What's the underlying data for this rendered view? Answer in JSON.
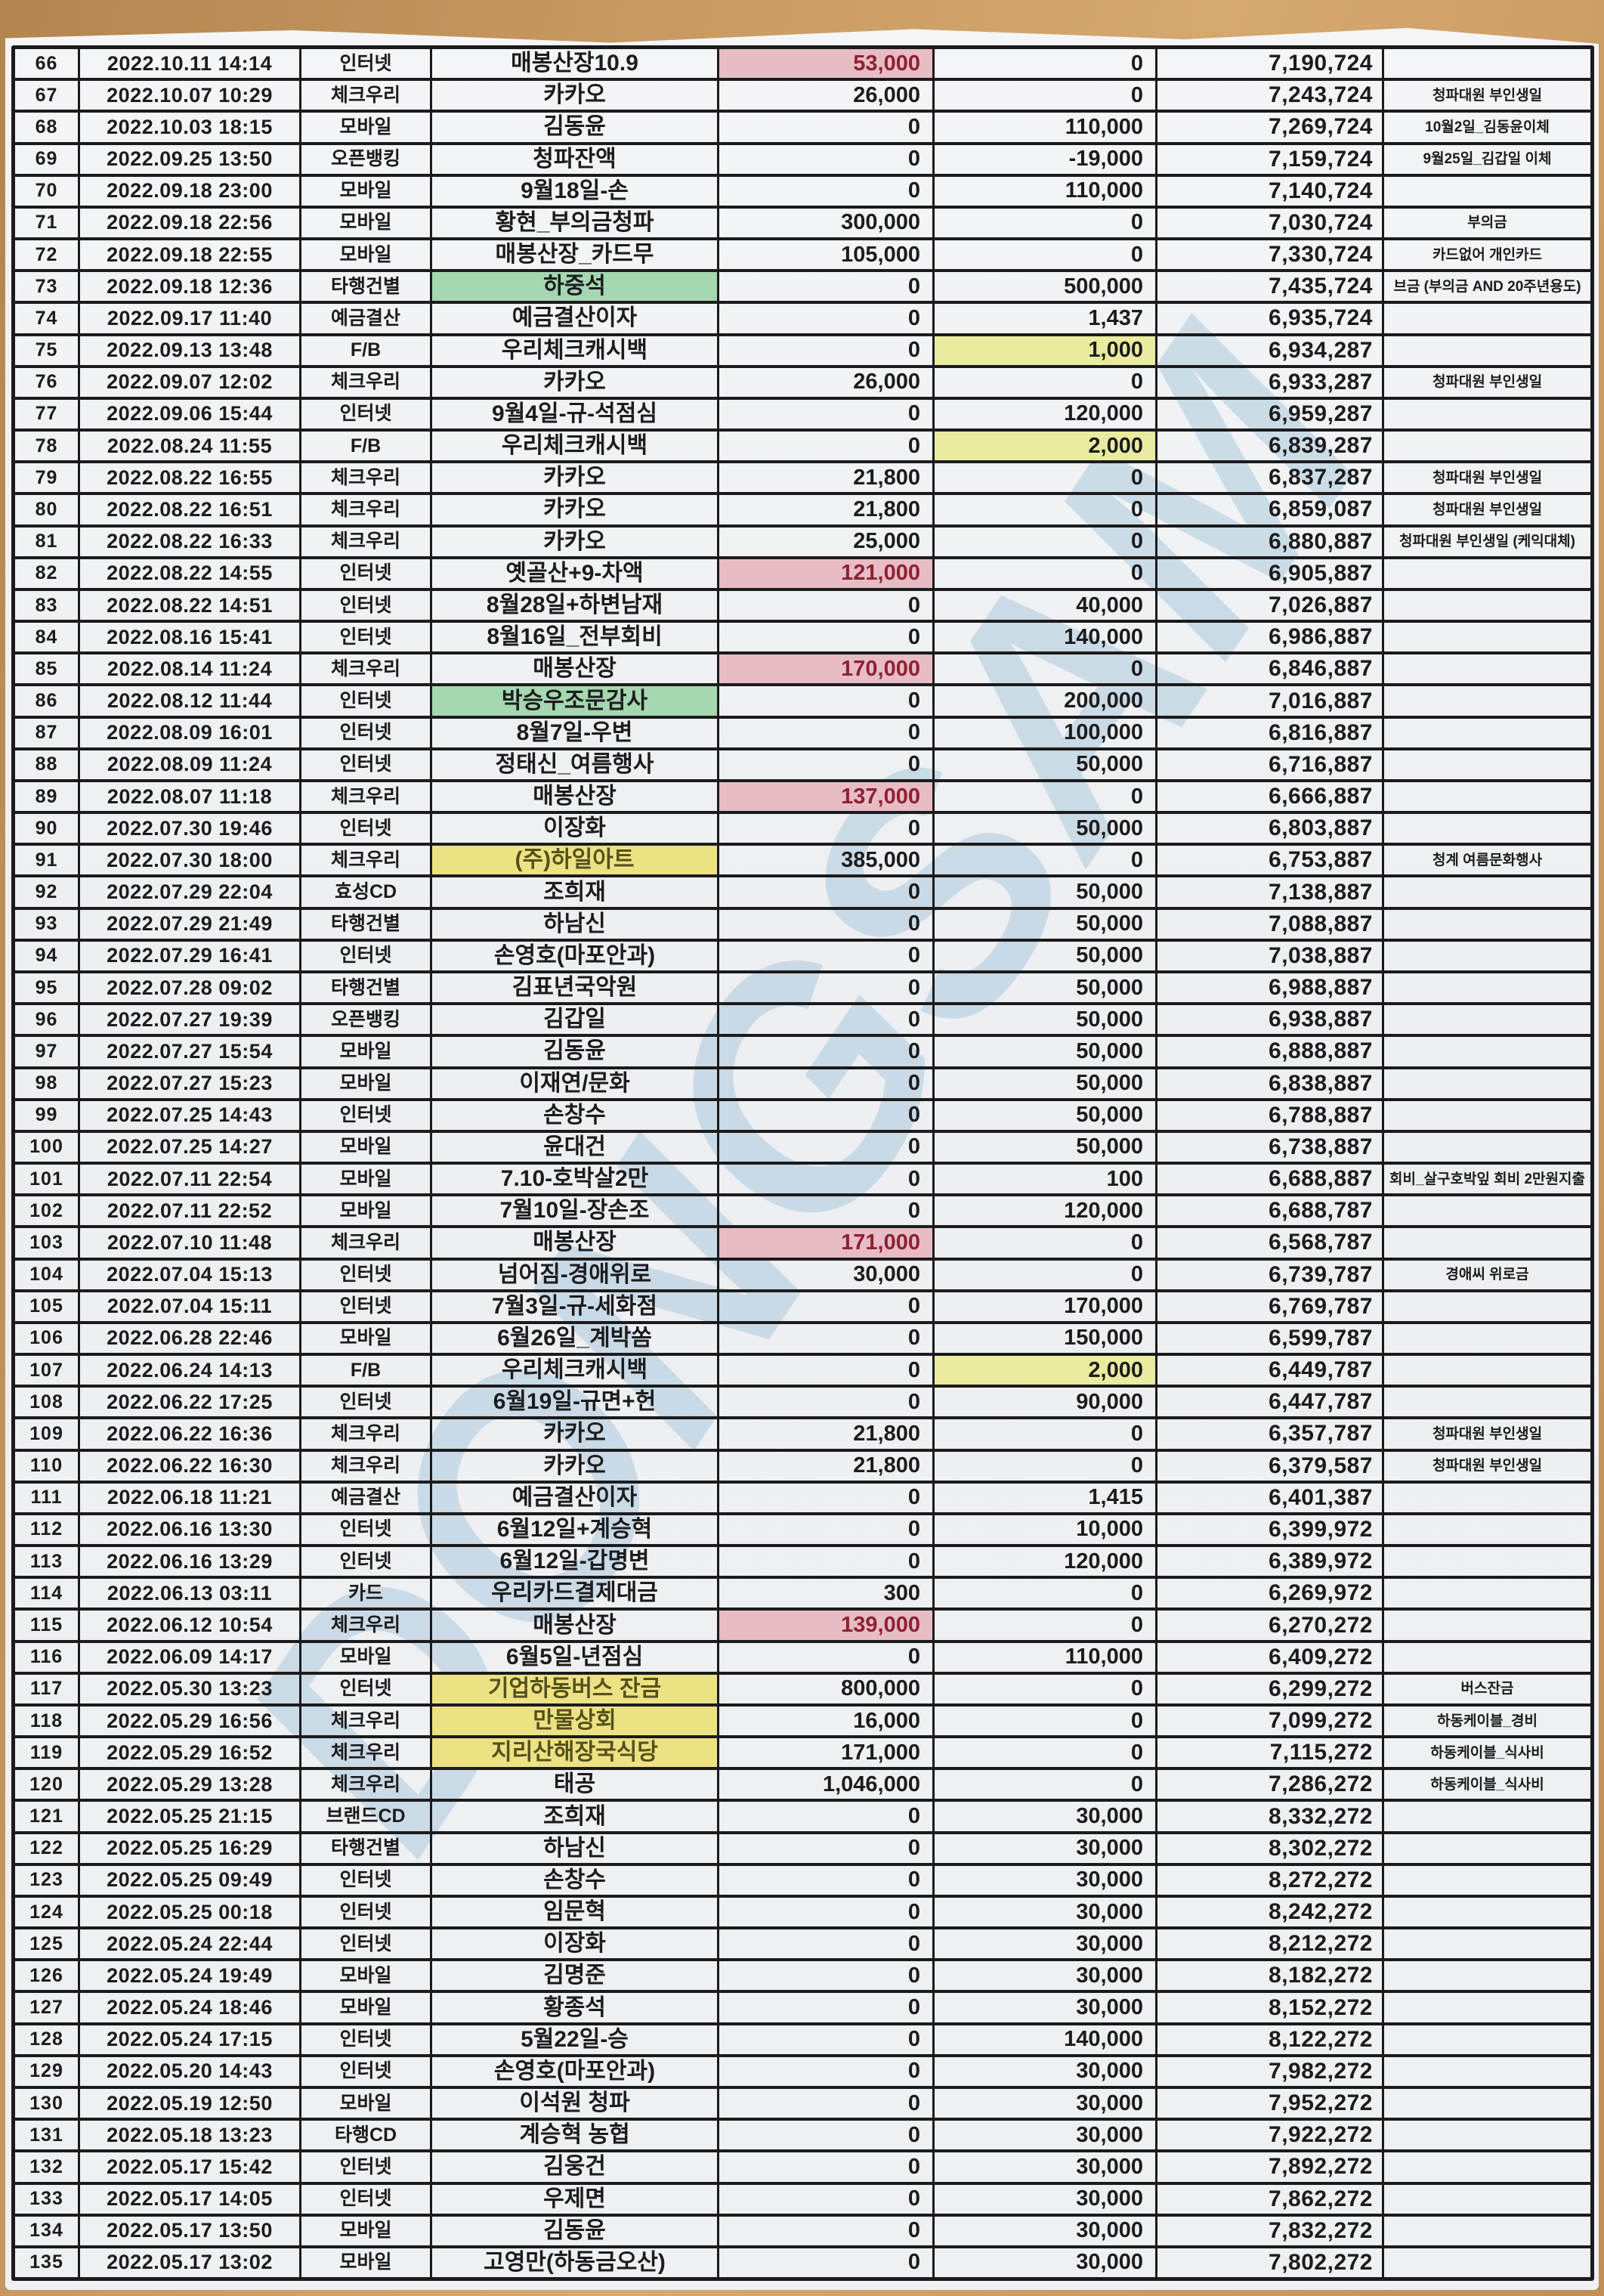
{
  "document": {
    "watermark": "DONGSAM"
  },
  "colors": {
    "paper": "#eef0f3",
    "wood_background": "#c2955f",
    "grid_line": "#1b1b1d",
    "highlight_pink": "#e8bcc5",
    "highlight_pink_text": "#8d2133",
    "highlight_green": "#a5d7b0",
    "highlight_yellow_description": "#ece284",
    "highlight_yellow_deposit": "#e9ec9f",
    "watermark_blue": "rgba(158,193,214,0.45)"
  },
  "table": {
    "fields": [
      "row_no",
      "datetime",
      "channel",
      "description",
      "withdrawal",
      "deposit",
      "balance",
      "note",
      "description_highlight",
      "withdrawal_highlight",
      "deposit_highlight"
    ],
    "rows": [
      [
        "66",
        "2022.10.11 14:14",
        "인터넷",
        "매봉산장10.9",
        "53,000",
        "0",
        "7,190,724",
        "",
        "",
        "pink",
        ""
      ],
      [
        "67",
        "2022.10.07 10:29",
        "체크우리",
        "카카오",
        "26,000",
        "0",
        "7,243,724",
        "청파대원  부인생일",
        "",
        "",
        ""
      ],
      [
        "68",
        "2022.10.03 18:15",
        "모바일",
        "김동윤",
        "0",
        "110,000",
        "7,269,724",
        "10월2일_김동윤이체",
        "",
        "",
        ""
      ],
      [
        "69",
        "2022.09.25 13:50",
        "오픈뱅킹",
        "청파잔액",
        "0",
        "-19,000",
        "7,159,724",
        "9월25일_김갑일  이체",
        "",
        "",
        ""
      ],
      [
        "70",
        "2022.09.18 23:00",
        "모바일",
        "9월18일-손",
        "0",
        "110,000",
        "7,140,724",
        "",
        "",
        "",
        ""
      ],
      [
        "71",
        "2022.09.18 22:56",
        "모바일",
        "황현_부의금청파",
        "300,000",
        "0",
        "7,030,724",
        "부의금",
        "",
        "",
        ""
      ],
      [
        "72",
        "2022.09.18 22:55",
        "모바일",
        "매봉산장_카드무",
        "105,000",
        "0",
        "7,330,724",
        "카드없어  개인카드",
        "",
        "",
        ""
      ],
      [
        "73",
        "2022.09.18 12:36",
        "타행건별",
        "하중석",
        "0",
        "500,000",
        "7,435,724",
        "브금 (부의금  AND  20주년용도)",
        "green",
        "",
        ""
      ],
      [
        "74",
        "2022.09.17 11:40",
        "예금결산",
        "예금결산이자",
        "0",
        "1,437",
        "6,935,724",
        "",
        "",
        "",
        ""
      ],
      [
        "75",
        "2022.09.13 13:48",
        "F/B",
        "우리체크캐시백",
        "0",
        "1,000",
        "6,934,287",
        "",
        "",
        "",
        "ydep"
      ],
      [
        "76",
        "2022.09.07 12:02",
        "체크우리",
        "카카오",
        "26,000",
        "0",
        "6,933,287",
        "청파대원  부인생일",
        "",
        "",
        ""
      ],
      [
        "77",
        "2022.09.06 15:44",
        "인터넷",
        "9월4일-규-석점심",
        "0",
        "120,000",
        "6,959,287",
        "",
        "",
        "",
        ""
      ],
      [
        "78",
        "2022.08.24 11:55",
        "F/B",
        "우리체크캐시백",
        "0",
        "2,000",
        "6,839,287",
        "",
        "",
        "",
        "ydep"
      ],
      [
        "79",
        "2022.08.22 16:55",
        "체크우리",
        "카카오",
        "21,800",
        "0",
        "6,837,287",
        "청파대원  부인생일",
        "",
        "",
        ""
      ],
      [
        "80",
        "2022.08.22 16:51",
        "체크우리",
        "카카오",
        "21,800",
        "0",
        "6,859,087",
        "청파대원  부인생일",
        "",
        "",
        ""
      ],
      [
        "81",
        "2022.08.22 16:33",
        "체크우리",
        "카카오",
        "25,000",
        "0",
        "6,880,887",
        "청파대원  부인생일 (케익대체)",
        "",
        "",
        ""
      ],
      [
        "82",
        "2022.08.22 14:55",
        "인터넷",
        "옛골산+9-차액",
        "121,000",
        "0",
        "6,905,887",
        "",
        "",
        "pink",
        ""
      ],
      [
        "83",
        "2022.08.22 14:51",
        "인터넷",
        "8월28일+하변남재",
        "0",
        "40,000",
        "7,026,887",
        "",
        "",
        "",
        ""
      ],
      [
        "84",
        "2022.08.16 15:41",
        "인터넷",
        "8월16일_전부회비",
        "0",
        "140,000",
        "6,986,887",
        "",
        "",
        "",
        ""
      ],
      [
        "85",
        "2022.08.14 11:24",
        "체크우리",
        "매봉산장",
        "170,000",
        "0",
        "6,846,887",
        "",
        "",
        "pink",
        ""
      ],
      [
        "86",
        "2022.08.12 11:44",
        "인터넷",
        "박승우조문감사",
        "0",
        "200,000",
        "7,016,887",
        "",
        "green",
        "",
        ""
      ],
      [
        "87",
        "2022.08.09 16:01",
        "인터넷",
        "8월7일-우변",
        "0",
        "100,000",
        "6,816,887",
        "",
        "",
        "",
        ""
      ],
      [
        "88",
        "2022.08.09 11:24",
        "인터넷",
        "정태신_여름행사",
        "0",
        "50,000",
        "6,716,887",
        "",
        "",
        "",
        ""
      ],
      [
        "89",
        "2022.08.07 11:18",
        "체크우리",
        "매봉산장",
        "137,000",
        "0",
        "6,666,887",
        "",
        "",
        "pink",
        ""
      ],
      [
        "90",
        "2022.07.30 19:46",
        "인터넷",
        "이장화",
        "0",
        "50,000",
        "6,803,887",
        "",
        "",
        "",
        ""
      ],
      [
        "91",
        "2022.07.30 18:00",
        "체크우리",
        "(주)하일아트",
        "385,000",
        "0",
        "6,753,887",
        "청계  여름문화행사",
        "yellow",
        "",
        ""
      ],
      [
        "92",
        "2022.07.29 22:04",
        "효성CD",
        "조희재",
        "0",
        "50,000",
        "7,138,887",
        "",
        "",
        "",
        ""
      ],
      [
        "93",
        "2022.07.29 21:49",
        "타행건별",
        "하남신",
        "0",
        "50,000",
        "7,088,887",
        "",
        "",
        "",
        ""
      ],
      [
        "94",
        "2022.07.29 16:41",
        "인터넷",
        "손영호(마포안과)",
        "0",
        "50,000",
        "7,038,887",
        "",
        "",
        "",
        ""
      ],
      [
        "95",
        "2022.07.28 09:02",
        "타행건별",
        "김표년국악원",
        "0",
        "50,000",
        "6,988,887",
        "",
        "",
        "",
        ""
      ],
      [
        "96",
        "2022.07.27 19:39",
        "오픈뱅킹",
        "김갑일",
        "0",
        "50,000",
        "6,938,887",
        "",
        "",
        "",
        ""
      ],
      [
        "97",
        "2022.07.27 15:54",
        "모바일",
        "김동윤",
        "0",
        "50,000",
        "6,888,887",
        "",
        "",
        "",
        ""
      ],
      [
        "98",
        "2022.07.27 15:23",
        "모바일",
        "이재연/문화",
        "0",
        "50,000",
        "6,838,887",
        "",
        "",
        "",
        ""
      ],
      [
        "99",
        "2022.07.25 14:43",
        "인터넷",
        "손창수",
        "0",
        "50,000",
        "6,788,887",
        "",
        "",
        "",
        ""
      ],
      [
        "100",
        "2022.07.25 14:27",
        "모바일",
        "윤대건",
        "0",
        "50,000",
        "6,738,887",
        "",
        "",
        "",
        ""
      ],
      [
        "101",
        "2022.07.11 22:54",
        "모바일",
        "7.10-호박살2만",
        "0",
        "100",
        "6,688,887",
        "회비_살구호박잎  회비  2만원지출",
        "",
        "",
        ""
      ],
      [
        "102",
        "2022.07.11 22:52",
        "모바일",
        "7월10일-장손조",
        "0",
        "120,000",
        "6,688,787",
        "",
        "",
        "",
        ""
      ],
      [
        "103",
        "2022.07.10 11:48",
        "체크우리",
        "매봉산장",
        "171,000",
        "0",
        "6,568,787",
        "",
        "",
        "pink",
        ""
      ],
      [
        "104",
        "2022.07.04 15:13",
        "인터넷",
        "넘어짐-경애위로",
        "30,000",
        "0",
        "6,739,787",
        "경애씨  위로금",
        "",
        "",
        ""
      ],
      [
        "105",
        "2022.07.04 15:11",
        "인터넷",
        "7월3일-규-세화점",
        "0",
        "170,000",
        "6,769,787",
        "",
        "",
        "",
        ""
      ],
      [
        "106",
        "2022.06.28 22:46",
        "모바일",
        "6월26일_계박쏨",
        "0",
        "150,000",
        "6,599,787",
        "",
        "",
        "",
        ""
      ],
      [
        "107",
        "2022.06.24 14:13",
        "F/B",
        "우리체크캐시백",
        "0",
        "2,000",
        "6,449,787",
        "",
        "",
        "",
        "ydep"
      ],
      [
        "108",
        "2022.06.22 17:25",
        "인터넷",
        "6월19일-규면+헌",
        "0",
        "90,000",
        "6,447,787",
        "",
        "",
        "",
        ""
      ],
      [
        "109",
        "2022.06.22 16:36",
        "체크우리",
        "카카오",
        "21,800",
        "0",
        "6,357,787",
        "청파대원  부인생일",
        "",
        "",
        ""
      ],
      [
        "110",
        "2022.06.22 16:30",
        "체크우리",
        "카카오",
        "21,800",
        "0",
        "6,379,587",
        "청파대원  부인생일",
        "",
        "",
        ""
      ],
      [
        "111",
        "2022.06.18 11:21",
        "예금결산",
        "예금결산이자",
        "0",
        "1,415",
        "6,401,387",
        "",
        "",
        "",
        ""
      ],
      [
        "112",
        "2022.06.16 13:30",
        "인터넷",
        "6월12일+계승혁",
        "0",
        "10,000",
        "6,399,972",
        "",
        "",
        "",
        ""
      ],
      [
        "113",
        "2022.06.16 13:29",
        "인터넷",
        "6월12일-갑명변",
        "0",
        "120,000",
        "6,389,972",
        "",
        "",
        "",
        ""
      ],
      [
        "114",
        "2022.06.13 03:11",
        "카드",
        "우리카드결제대금",
        "300",
        "0",
        "6,269,972",
        "",
        "",
        "",
        ""
      ],
      [
        "115",
        "2022.06.12 10:54",
        "체크우리",
        "매봉산장",
        "139,000",
        "0",
        "6,270,272",
        "",
        "",
        "pink",
        ""
      ],
      [
        "116",
        "2022.06.09 14:17",
        "모바일",
        "6월5일-년점심",
        "0",
        "110,000",
        "6,409,272",
        "",
        "",
        "",
        ""
      ],
      [
        "117",
        "2022.05.30 13:23",
        "인터넷",
        "기업하동버스 잔금",
        "800,000",
        "0",
        "6,299,272",
        "버스잔금",
        "yellow",
        "",
        ""
      ],
      [
        "118",
        "2022.05.29 16:56",
        "체크우리",
        "만물상회",
        "16,000",
        "0",
        "7,099,272",
        "하동케이블_경비",
        "yellow",
        "",
        ""
      ],
      [
        "119",
        "2022.05.29 16:52",
        "체크우리",
        "지리산해장국식당",
        "171,000",
        "0",
        "7,115,272",
        "하동케이블_식사비",
        "yellow",
        "",
        ""
      ],
      [
        "120",
        "2022.05.29 13:28",
        "체크우리",
        "태공",
        "1,046,000",
        "0",
        "7,286,272",
        "하동케이블_식사비",
        "",
        "",
        ""
      ],
      [
        "121",
        "2022.05.25 21:15",
        "브랜드CD",
        "조희재",
        "0",
        "30,000",
        "8,332,272",
        "",
        "",
        "",
        ""
      ],
      [
        "122",
        "2022.05.25 16:29",
        "타행건별",
        "하남신",
        "0",
        "30,000",
        "8,302,272",
        "",
        "",
        "",
        ""
      ],
      [
        "123",
        "2022.05.25 09:49",
        "인터넷",
        "손창수",
        "0",
        "30,000",
        "8,272,272",
        "",
        "",
        "",
        ""
      ],
      [
        "124",
        "2022.05.25 00:18",
        "인터넷",
        "임문혁",
        "0",
        "30,000",
        "8,242,272",
        "",
        "",
        "",
        ""
      ],
      [
        "125",
        "2022.05.24 22:44",
        "인터넷",
        "이장화",
        "0",
        "30,000",
        "8,212,272",
        "",
        "",
        "",
        ""
      ],
      [
        "126",
        "2022.05.24 19:49",
        "모바일",
        "김명준",
        "0",
        "30,000",
        "8,182,272",
        "",
        "",
        "",
        ""
      ],
      [
        "127",
        "2022.05.24 18:46",
        "모바일",
        "황종석",
        "0",
        "30,000",
        "8,152,272",
        "",
        "",
        "",
        ""
      ],
      [
        "128",
        "2022.05.24 17:15",
        "인터넷",
        "5월22일-승",
        "0",
        "140,000",
        "8,122,272",
        "",
        "",
        "",
        ""
      ],
      [
        "129",
        "2022.05.20 14:43",
        "인터넷",
        "손영호(마포안과)",
        "0",
        "30,000",
        "7,982,272",
        "",
        "",
        "",
        ""
      ],
      [
        "130",
        "2022.05.19 12:50",
        "모바일",
        "이석원 청파",
        "0",
        "30,000",
        "7,952,272",
        "",
        "",
        "",
        ""
      ],
      [
        "131",
        "2022.05.18 13:23",
        "타행CD",
        "계승혁  농협",
        "0",
        "30,000",
        "7,922,272",
        "",
        "",
        "",
        ""
      ],
      [
        "132",
        "2022.05.17 15:42",
        "인터넷",
        "김웅건",
        "0",
        "30,000",
        "7,892,272",
        "",
        "",
        "",
        ""
      ],
      [
        "133",
        "2022.05.17 14:05",
        "인터넷",
        "우제면",
        "0",
        "30,000",
        "7,862,272",
        "",
        "",
        "",
        ""
      ],
      [
        "134",
        "2022.05.17 13:50",
        "모바일",
        "김동윤",
        "0",
        "30,000",
        "7,832,272",
        "",
        "",
        "",
        ""
      ],
      [
        "135",
        "2022.05.17 13:02",
        "모바일",
        "고영만(하동금오산)",
        "0",
        "30,000",
        "7,802,272",
        "",
        "",
        "",
        ""
      ]
    ]
  }
}
